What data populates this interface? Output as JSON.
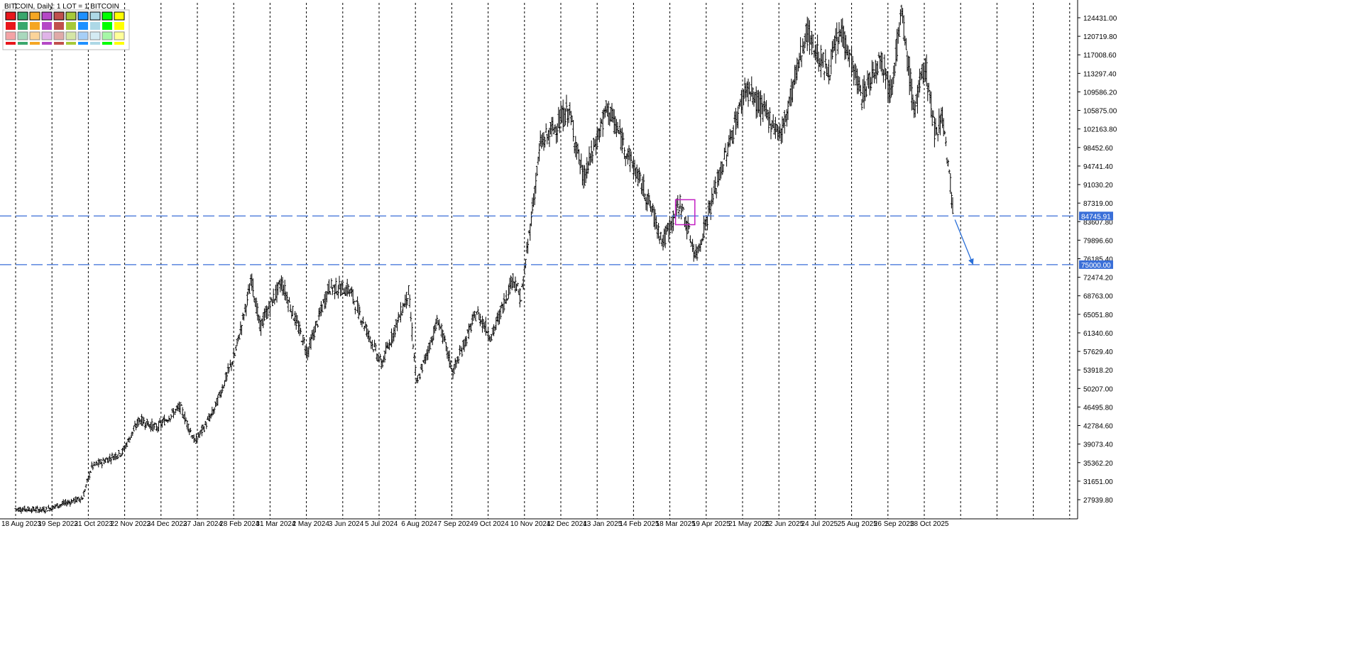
{
  "window": {
    "title": "BITCOIN, Daily:  1 LOT = 1 BITCOIN"
  },
  "colors": {
    "background": "#ffffff",
    "bars": "#000000",
    "grid": "#000000",
    "horizontal_line": "#3a6fd8",
    "arrow": "#2a6fd8",
    "highlight_box": "#c21fc2",
    "price_tag_bg": "#3a6fd8"
  },
  "palette": {
    "row1": [
      "#e8161b",
      "#3aa76d",
      "#f5a623",
      "#b548c6",
      "#c0504d",
      "#a6c93a",
      "#1e90ff",
      "#add8e6",
      "#00ff00",
      "#ffff00"
    ],
    "row2": [
      "#e8161b",
      "#3aa76d",
      "#f5a623",
      "#b548c6",
      "#c0504d",
      "#a6c93a",
      "#1e90ff",
      "#add8e6",
      "#00ff00",
      "#ffff00"
    ],
    "row3": [
      "#f4a3a5",
      "#a9d8bd",
      "#fbd49a",
      "#e0b4e8",
      "#e0aaa8",
      "#d5e6a6",
      "#a7cff7",
      "#d4ebf3",
      "#a6f7a6",
      "#ffff99"
    ],
    "row4": [
      "#e8161b",
      "#3aa76d",
      "#f5a623",
      "#b548c6",
      "#c0504d",
      "#a6c93a",
      "#1e90ff",
      "#add8e6",
      "#00ff00",
      "#ffff00"
    ]
  },
  "chart_data": {
    "type": "ohlc",
    "symbol": "BITCOIN",
    "timeframe": "Daily",
    "y_ticks": [
      "124431.00",
      "120719.80",
      "117008.60",
      "113297.40",
      "109586.20",
      "105875.00",
      "102163.80",
      "98452.60",
      "94741.40",
      "91030.20",
      "87319.00",
      "83607.80",
      "79896.60",
      "76185.40",
      "72474.20",
      "68763.00",
      "65051.80",
      "61340.60",
      "57629.40",
      "53918.20",
      "50207.00",
      "46495.80",
      "42784.60",
      "39073.40",
      "35362.20",
      "31651.00",
      "27939.80"
    ],
    "x_ticks": [
      "18 Aug 2023",
      "19 Sep 2023",
      "21 Oct 2023",
      "22 Nov 2023",
      "24 Dec 2023",
      "27 Jan 2024",
      "28 Feb 2024",
      "31 Mar 2024",
      "2 May 2024",
      "3 Jun 2024",
      "5 Jul 2024",
      "6 Aug 2024",
      "7 Sep 2024",
      "9 Oct 2024",
      "10 Nov 2024",
      "12 Dec 2024",
      "13 Jan 2025",
      "14 Feb 2025",
      "18 Mar 2025",
      "19 Apr 2025",
      "21 May 2025",
      "22 Jun 2025",
      "24 Jul 2025",
      "25 Aug 2025",
      "26 Sep 2025",
      "28 Oct 2025"
    ],
    "ylim": [
      25500,
      127000
    ],
    "price_path": [
      {
        "date": "2023-08-18",
        "close": 26100
      },
      {
        "date": "2023-09-12",
        "close": 25900
      },
      {
        "date": "2023-10-16",
        "close": 28300
      },
      {
        "date": "2023-10-24",
        "close": 34500
      },
      {
        "date": "2023-11-20",
        "close": 37500
      },
      {
        "date": "2023-12-05",
        "close": 44000
      },
      {
        "date": "2023-12-20",
        "close": 42300
      },
      {
        "date": "2024-01-10",
        "close": 46500
      },
      {
        "date": "2024-01-23",
        "close": 39500
      },
      {
        "date": "2024-02-08",
        "close": 45500
      },
      {
        "date": "2024-02-27",
        "close": 57000
      },
      {
        "date": "2024-03-13",
        "close": 72000
      },
      {
        "date": "2024-03-20",
        "close": 62500
      },
      {
        "date": "2024-04-08",
        "close": 71500
      },
      {
        "date": "2024-05-01",
        "close": 57500
      },
      {
        "date": "2024-05-20",
        "close": 70500
      },
      {
        "date": "2024-06-07",
        "close": 70000
      },
      {
        "date": "2024-07-05",
        "close": 55000
      },
      {
        "date": "2024-07-29",
        "close": 69500
      },
      {
        "date": "2024-08-05",
        "close": 51000
      },
      {
        "date": "2024-08-24",
        "close": 64000
      },
      {
        "date": "2024-09-06",
        "close": 53500
      },
      {
        "date": "2024-09-27",
        "close": 65500
      },
      {
        "date": "2024-10-10",
        "close": 60500
      },
      {
        "date": "2024-10-29",
        "close": 72500
      },
      {
        "date": "2024-11-05",
        "close": 68000
      },
      {
        "date": "2024-11-22",
        "close": 99000
      },
      {
        "date": "2024-12-17",
        "close": 106000
      },
      {
        "date": "2024-12-30",
        "close": 92000
      },
      {
        "date": "2025-01-20",
        "close": 106500
      },
      {
        "date": "2025-02-24",
        "close": 88500
      },
      {
        "date": "2025-03-10",
        "close": 79500
      },
      {
        "date": "2025-03-25",
        "close": 87500
      },
      {
        "date": "2025-04-08",
        "close": 76500
      },
      {
        "date": "2025-04-21",
        "close": 87000
      },
      {
        "date": "2025-05-22",
        "close": 110500
      },
      {
        "date": "2025-06-22",
        "close": 101000
      },
      {
        "date": "2025-07-14",
        "close": 121500
      },
      {
        "date": "2025-08-02",
        "close": 113500
      },
      {
        "date": "2025-08-14",
        "close": 122000
      },
      {
        "date": "2025-09-01",
        "close": 108500
      },
      {
        "date": "2025-09-18",
        "close": 117000
      },
      {
        "date": "2025-09-26",
        "close": 109500
      },
      {
        "date": "2025-10-06",
        "close": 125000
      },
      {
        "date": "2025-10-17",
        "close": 106000
      },
      {
        "date": "2025-10-27",
        "close": 115000
      },
      {
        "date": "2025-11-04",
        "close": 101500
      },
      {
        "date": "2025-11-11",
        "close": 105000
      },
      {
        "date": "2025-11-18",
        "close": 91000
      },
      {
        "date": "2025-11-21",
        "close": 84745.91
      }
    ],
    "horizontal_lines": [
      {
        "price": 84745.91,
        "label": "84745.91"
      },
      {
        "price": 75000.0,
        "label": "75000.00"
      }
    ],
    "highlight_box": {
      "date_start": "2025-03-21",
      "date_end": "2025-04-07",
      "price_low": 83000,
      "price_high": 88000
    },
    "projection_arrow": {
      "from_date": "2025-11-22",
      "from_price": 84000,
      "to_date": "2025-12-08",
      "to_price": 75000
    }
  }
}
